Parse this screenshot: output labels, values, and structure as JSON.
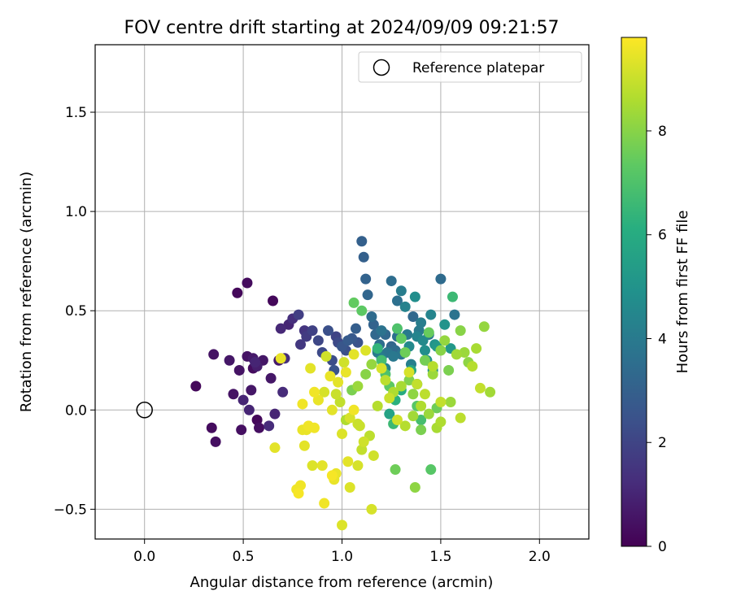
{
  "chart_data": {
    "type": "scatter",
    "title": "FOV centre drift starting at 2024/09/09 09:21:57",
    "xlabel": "Angular distance from reference (arcmin)",
    "ylabel": "Rotation from reference (arcmin)",
    "xlim": [
      -0.25,
      2.25
    ],
    "ylim": [
      -0.65,
      1.84
    ],
    "xticks": [
      0.0,
      0.5,
      1.0,
      1.5,
      2.0
    ],
    "xtick_labels": [
      "0.0",
      "0.5",
      "1.0",
      "1.5",
      "2.0"
    ],
    "yticks": [
      -0.5,
      0.0,
      0.5,
      1.0,
      1.5
    ],
    "ytick_labels": [
      "−0.5",
      "0.0",
      "0.5",
      "1.0",
      "1.5"
    ],
    "grid": true,
    "legend": {
      "placement": "top-right",
      "label": "Reference platepar"
    },
    "reference": {
      "x": 0.0,
      "y": 0.0
    },
    "colorbar": {
      "label": "Hours from first FF file",
      "colormap": "viridis",
      "range": [
        0,
        9.8
      ],
      "ticks": [
        0,
        2,
        4,
        6,
        8
      ],
      "tick_labels": [
        "0",
        "2",
        "4",
        "6",
        "8"
      ]
    },
    "series": [
      {
        "colored_by": "hours",
        "x": [
          0.26,
          0.35,
          0.34,
          0.36,
          0.43,
          0.45,
          0.47,
          0.48,
          0.49,
          0.5,
          0.52,
          0.52,
          0.53,
          0.54,
          0.55,
          0.55,
          0.56,
          0.57,
          0.57,
          0.58,
          0.6,
          0.63,
          0.64,
          0.65,
          0.66,
          0.68,
          0.69,
          0.7,
          0.71,
          0.73,
          0.75,
          0.78,
          0.79,
          0.81,
          0.82,
          0.85,
          0.88,
          0.9,
          0.93,
          0.95,
          0.96,
          0.97,
          0.98,
          1.0,
          1.02,
          1.03,
          1.05,
          1.07,
          1.08,
          1.1,
          1.11,
          1.12,
          1.13,
          1.15,
          1.16,
          1.17,
          1.18,
          1.19,
          1.2,
          1.22,
          1.23,
          1.25,
          1.26,
          1.27,
          1.28,
          1.3,
          1.18,
          1.2,
          1.22,
          1.25,
          1.28,
          1.3,
          1.32,
          1.33,
          1.34,
          1.35,
          1.36,
          1.37,
          1.38,
          1.39,
          1.4,
          1.41,
          1.42,
          1.43,
          1.44,
          1.45,
          1.46,
          1.47,
          1.48,
          1.5,
          1.52,
          1.55,
          1.57,
          1.38,
          1.35,
          1.3,
          1.27,
          1.24,
          1.18,
          1.2,
          1.22,
          1.24,
          1.26,
          1.28,
          1.3,
          1.32,
          1.34,
          1.36,
          1.38,
          1.4,
          1.42,
          1.44,
          1.46,
          1.48,
          1.5,
          1.52,
          1.54,
          1.56,
          1.58,
          1.6,
          1.62,
          1.64,
          1.66,
          1.68,
          1.7,
          1.72,
          1.75,
          1.4,
          1.45,
          1.5,
          1.55,
          1.6,
          1.27,
          1.37,
          1.02,
          1.05,
          1.08,
          1.12,
          1.15,
          1.1,
          1.06,
          0.8,
          0.82,
          0.84,
          0.86,
          0.88,
          0.9,
          0.92,
          0.94,
          0.95,
          0.96,
          0.97,
          0.98,
          0.99,
          1.0,
          1.01,
          1.02,
          1.04,
          1.06,
          1.08,
          1.1,
          1.12,
          1.14,
          1.16,
          1.18,
          1.2,
          1.22,
          1.24,
          1.26,
          1.28,
          1.3,
          1.32,
          1.34,
          1.36,
          1.38,
          1.4,
          1.42,
          1.44,
          1.46,
          1.48,
          1.5,
          0.66,
          0.69,
          0.77,
          0.78,
          0.79,
          0.8,
          0.81,
          0.83,
          0.85,
          0.86,
          0.88,
          0.91,
          0.91,
          0.95,
          0.97,
          1.0,
          1.03,
          1.04,
          1.06,
          1.08,
          1.09,
          1.11,
          1.15
        ],
        "y": [
          0.12,
          0.28,
          -0.09,
          -0.16,
          0.25,
          0.08,
          0.59,
          0.2,
          -0.1,
          0.05,
          0.27,
          0.64,
          0.0,
          0.1,
          0.21,
          0.26,
          0.24,
          0.22,
          -0.05,
          -0.09,
          0.25,
          -0.08,
          0.16,
          0.55,
          -0.02,
          0.25,
          0.41,
          0.09,
          0.26,
          0.43,
          0.46,
          0.48,
          0.33,
          0.4,
          0.37,
          0.4,
          0.35,
          0.29,
          0.4,
          0.25,
          0.2,
          0.37,
          0.34,
          0.32,
          0.3,
          0.35,
          0.36,
          0.41,
          0.34,
          0.85,
          0.77,
          0.66,
          0.58,
          0.47,
          0.43,
          0.38,
          0.3,
          0.33,
          0.4,
          0.38,
          0.29,
          0.32,
          0.27,
          0.3,
          0.37,
          0.28,
          0.29,
          0.26,
          0.21,
          0.65,
          0.55,
          0.6,
          0.52,
          0.38,
          0.32,
          0.23,
          0.47,
          0.57,
          0.37,
          0.4,
          0.44,
          0.35,
          0.3,
          0.25,
          0.38,
          0.48,
          0.2,
          0.33,
          0.32,
          0.66,
          0.43,
          0.31,
          0.48,
          0.13,
          0.2,
          0.1,
          0.05,
          -0.02,
          0.31,
          0.25,
          0.18,
          0.12,
          -0.07,
          0.41,
          0.36,
          0.29,
          0.15,
          0.08,
          0.02,
          -0.05,
          0.25,
          0.39,
          0.18,
          0.01,
          0.3,
          0.35,
          0.2,
          0.57,
          0.28,
          0.4,
          0.29,
          0.24,
          0.22,
          0.31,
          0.11,
          0.42,
          0.09,
          -0.1,
          -0.3,
          -0.06,
          0.04,
          -0.04,
          -0.3,
          -0.39,
          -0.05,
          0.1,
          0.12,
          0.18,
          0.23,
          0.5,
          0.54,
          0.03,
          -0.1,
          0.21,
          0.09,
          0.05,
          -0.28,
          0.27,
          0.17,
          0.0,
          -0.35,
          0.08,
          0.14,
          0.04,
          -0.12,
          0.24,
          0.19,
          -0.04,
          0.28,
          -0.07,
          -0.2,
          0.3,
          -0.13,
          -0.23,
          0.02,
          0.21,
          0.15,
          0.06,
          0.09,
          -0.05,
          0.12,
          -0.08,
          0.19,
          -0.03,
          0.13,
          0.02,
          0.08,
          -0.02,
          0.22,
          -0.09,
          0.04,
          -0.19,
          0.26,
          -0.4,
          -0.42,
          -0.38,
          -0.1,
          -0.18,
          -0.08,
          -0.28,
          -0.09,
          0.05,
          -0.47,
          0.09,
          -0.33,
          -0.32,
          -0.58,
          -0.26,
          -0.39,
          0.0,
          -0.28,
          -0.08,
          -0.16,
          -0.5
        ],
        "hours": [
          0.2,
          0.5,
          0.3,
          0.4,
          0.6,
          0.5,
          0.2,
          0.5,
          0.4,
          1.0,
          0.5,
          0.3,
          1.0,
          0.6,
          0.3,
          0.7,
          1.0,
          0.8,
          0.2,
          0.4,
          0.6,
          1.2,
          0.6,
          0.2,
          1.0,
          0.7,
          1.1,
          1.2,
          1.3,
          1.0,
          1.3,
          1.8,
          1.6,
          1.5,
          1.7,
          1.9,
          2.1,
          2.2,
          2.4,
          2.3,
          2.5,
          2.0,
          2.2,
          2.6,
          2.4,
          2.8,
          2.7,
          2.9,
          2.5,
          3.0,
          3.0,
          3.1,
          3.2,
          3.4,
          3.1,
          3.3,
          3.6,
          3.5,
          3.7,
          3.3,
          3.8,
          3.2,
          3.9,
          3.4,
          3.6,
          3.8,
          4.0,
          4.2,
          4.4,
          3.5,
          3.6,
          4.1,
          4.3,
          4.0,
          4.6,
          4.2,
          3.3,
          4.8,
          4.4,
          4.0,
          4.1,
          4.6,
          4.8,
          4.9,
          3.9,
          4.4,
          4.8,
          5.0,
          5.2,
          3.4,
          5.0,
          5.2,
          3.7,
          5.5,
          5.8,
          6.0,
          6.2,
          5.6,
          6.4,
          6.8,
          7.0,
          7.3,
          6.6,
          7.0,
          7.4,
          7.6,
          7.9,
          8.1,
          7.2,
          6.8,
          7.7,
          7.5,
          8.3,
          7.6,
          8.0,
          8.2,
          7.8,
          6.6,
          8.4,
          8.0,
          8.3,
          8.1,
          8.7,
          8.5,
          8.9,
          8.2,
          8.4,
          7.8,
          7.2,
          8.6,
          8.3,
          8.8,
          7.6,
          8.1,
          8.6,
          7.8,
          8.3,
          8.0,
          8.2,
          7.3,
          7.4,
          9.6,
          9.5,
          9.4,
          9.6,
          9.3,
          9.4,
          9.1,
          9.5,
          9.4,
          9.5,
          9.0,
          9.4,
          8.9,
          9.3,
          9.1,
          9.5,
          9.2,
          9.4,
          9.0,
          8.9,
          9.3,
          8.8,
          9.1,
          8.7,
          9.2,
          8.8,
          9.0,
          8.6,
          9.1,
          8.5,
          8.7,
          9.2,
          8.4,
          8.9,
          8.6,
          8.8,
          8.3,
          8.7,
          8.5,
          8.9,
          9.4,
          9.5,
          9.6,
          9.7,
          9.6,
          9.5,
          9.4,
          9.6,
          9.3,
          9.6,
          9.5,
          9.6,
          9.2,
          9.7,
          9.5,
          9.3,
          9.4,
          9.3,
          9.6,
          9.2,
          9.0,
          9.1,
          9.2
        ]
      }
    ]
  }
}
